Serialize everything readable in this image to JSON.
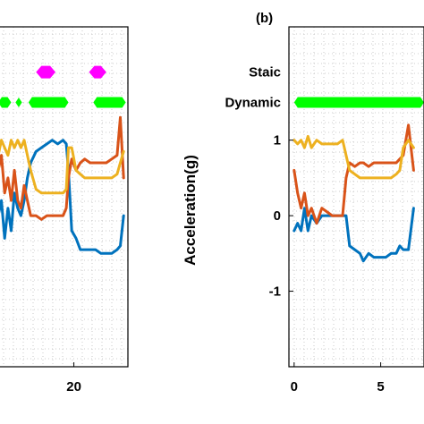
{
  "colors": {
    "x_axis": "#0072BD",
    "y_axis": "#D95319",
    "z_axis": "#EDB120",
    "static_marker": "#FF00FF",
    "dynamic_marker": "#00FF00",
    "grid": "#bdbdbd"
  },
  "chart_data": [
    {
      "type": "line",
      "panel_label": "",
      "xlim": [
        13,
        25
      ],
      "ylim": [
        -2,
        2.5
      ],
      "x_ticks": [
        20
      ],
      "x_tick_labels": [
        "20"
      ],
      "grid": true,
      "states": {
        "static": {
          "y": 1.9,
          "segments": [
            [
              16.5,
              18.3
            ],
            [
              21.4,
              23.0
            ]
          ]
        },
        "dynamic": {
          "y": 1.5,
          "segments": [
            [
              13,
              14.2
            ],
            [
              14.6,
              15.2
            ],
            [
              15.8,
              19.5
            ],
            [
              21.8,
              24.8
            ]
          ]
        }
      },
      "series": [
        {
          "color_key": "x_axis",
          "points": [
            [
              13,
              0.0
            ],
            [
              13.3,
              0.2
            ],
            [
              13.6,
              -0.3
            ],
            [
              13.9,
              0.1
            ],
            [
              14.2,
              -0.2
            ],
            [
              14.5,
              0.3
            ],
            [
              14.8,
              0.1
            ],
            [
              15.1,
              0.0
            ],
            [
              15.4,
              0.2
            ],
            [
              15.7,
              0.5
            ],
            [
              16.0,
              0.7
            ],
            [
              16.5,
              0.85
            ],
            [
              17.0,
              0.9
            ],
            [
              17.5,
              0.95
            ],
            [
              18.0,
              1.0
            ],
            [
              18.5,
              0.95
            ],
            [
              19.0,
              1.0
            ],
            [
              19.3,
              0.95
            ],
            [
              19.5,
              0.6
            ],
            [
              19.8,
              -0.2
            ],
            [
              20.2,
              -0.3
            ],
            [
              20.6,
              -0.45
            ],
            [
              21.0,
              -0.45
            ],
            [
              21.5,
              -0.45
            ],
            [
              22.0,
              -0.45
            ],
            [
              22.5,
              -0.5
            ],
            [
              23.0,
              -0.5
            ],
            [
              23.5,
              -0.5
            ],
            [
              24.0,
              -0.45
            ],
            [
              24.3,
              -0.4
            ],
            [
              24.6,
              0.0
            ]
          ]
        },
        {
          "color_key": "y_axis",
          "points": [
            [
              13,
              0.6
            ],
            [
              13.3,
              0.8
            ],
            [
              13.6,
              0.3
            ],
            [
              13.9,
              0.5
            ],
            [
              14.2,
              0.2
            ],
            [
              14.5,
              0.6
            ],
            [
              14.8,
              0.2
            ],
            [
              15.1,
              0.1
            ],
            [
              15.4,
              0.4
            ],
            [
              15.7,
              0.2
            ],
            [
              16.0,
              0.0
            ],
            [
              16.5,
              0.0
            ],
            [
              17.0,
              -0.05
            ],
            [
              17.5,
              0.0
            ],
            [
              18.0,
              0.0
            ],
            [
              18.5,
              0.0
            ],
            [
              19.0,
              0.0
            ],
            [
              19.3,
              0.1
            ],
            [
              19.5,
              0.5
            ],
            [
              19.8,
              0.75
            ],
            [
              20.2,
              0.6
            ],
            [
              20.6,
              0.7
            ],
            [
              21.0,
              0.75
            ],
            [
              21.5,
              0.7
            ],
            [
              22.0,
              0.7
            ],
            [
              22.5,
              0.7
            ],
            [
              23.0,
              0.7
            ],
            [
              23.5,
              0.75
            ],
            [
              24.0,
              0.8
            ],
            [
              24.3,
              1.3
            ],
            [
              24.6,
              0.5
            ]
          ]
        },
        {
          "color_key": "z_axis",
          "points": [
            [
              13,
              0.8
            ],
            [
              13.3,
              1.0
            ],
            [
              13.6,
              0.9
            ],
            [
              13.9,
              0.8
            ],
            [
              14.2,
              1.0
            ],
            [
              14.5,
              0.9
            ],
            [
              14.8,
              1.0
            ],
            [
              15.1,
              0.9
            ],
            [
              15.4,
              1.0
            ],
            [
              15.7,
              0.8
            ],
            [
              16.0,
              0.6
            ],
            [
              16.5,
              0.35
            ],
            [
              17.0,
              0.3
            ],
            [
              17.5,
              0.3
            ],
            [
              18.0,
              0.3
            ],
            [
              18.5,
              0.3
            ],
            [
              19.0,
              0.3
            ],
            [
              19.3,
              0.35
            ],
            [
              19.5,
              0.9
            ],
            [
              19.8,
              0.9
            ],
            [
              20.2,
              0.6
            ],
            [
              20.6,
              0.55
            ],
            [
              21.0,
              0.5
            ],
            [
              21.5,
              0.5
            ],
            [
              22.0,
              0.5
            ],
            [
              22.5,
              0.5
            ],
            [
              23.0,
              0.5
            ],
            [
              23.5,
              0.5
            ],
            [
              24.0,
              0.55
            ],
            [
              24.3,
              0.7
            ],
            [
              24.6,
              0.85
            ]
          ]
        }
      ]
    },
    {
      "type": "line",
      "panel_label": "(b)",
      "ylabel": "Acceleration(g)",
      "xlim": [
        -0.3,
        7.5
      ],
      "ylim": [
        -2,
        2.5
      ],
      "x_ticks": [
        0,
        5
      ],
      "x_tick_labels": [
        "0",
        "5"
      ],
      "y_ticks": [
        1,
        0,
        -1
      ],
      "y_tick_labels": [
        "1",
        "0",
        "-1"
      ],
      "state_labels": {
        "static": "Staic",
        "dynamic": "Dynamic"
      },
      "grid": true,
      "states": {
        "static": {
          "y": 1.9,
          "segments": []
        },
        "dynamic": {
          "y": 1.5,
          "segments": [
            [
              0,
              7.5
            ]
          ]
        }
      },
      "series": [
        {
          "color_key": "x_axis",
          "points": [
            [
              0,
              -0.2
            ],
            [
              0.2,
              -0.1
            ],
            [
              0.4,
              -0.2
            ],
            [
              0.6,
              0.1
            ],
            [
              0.8,
              -0.2
            ],
            [
              1.0,
              0.0
            ],
            [
              1.3,
              -0.1
            ],
            [
              1.6,
              0.0
            ],
            [
              1.9,
              0.0
            ],
            [
              2.2,
              0.0
            ],
            [
              2.5,
              0.0
            ],
            [
              2.8,
              0.0
            ],
            [
              3.0,
              0.0
            ],
            [
              3.2,
              -0.4
            ],
            [
              3.5,
              -0.45
            ],
            [
              3.8,
              -0.5
            ],
            [
              4.0,
              -0.6
            ],
            [
              4.3,
              -0.5
            ],
            [
              4.6,
              -0.55
            ],
            [
              5.0,
              -0.55
            ],
            [
              5.3,
              -0.55
            ],
            [
              5.6,
              -0.5
            ],
            [
              5.9,
              -0.5
            ],
            [
              6.1,
              -0.4
            ],
            [
              6.3,
              -0.45
            ],
            [
              6.6,
              -0.45
            ],
            [
              6.9,
              0.1
            ]
          ]
        },
        {
          "color_key": "y_axis",
          "points": [
            [
              0,
              0.6
            ],
            [
              0.2,
              0.3
            ],
            [
              0.4,
              0.1
            ],
            [
              0.6,
              0.3
            ],
            [
              0.8,
              0.0
            ],
            [
              1.0,
              0.1
            ],
            [
              1.3,
              -0.1
            ],
            [
              1.6,
              0.1
            ],
            [
              1.9,
              0.05
            ],
            [
              2.2,
              0.0
            ],
            [
              2.5,
              0.0
            ],
            [
              2.8,
              0.0
            ],
            [
              3.0,
              0.5
            ],
            [
              3.2,
              0.7
            ],
            [
              3.5,
              0.65
            ],
            [
              3.8,
              0.7
            ],
            [
              4.0,
              0.7
            ],
            [
              4.3,
              0.65
            ],
            [
              4.6,
              0.7
            ],
            [
              5.0,
              0.7
            ],
            [
              5.3,
              0.7
            ],
            [
              5.6,
              0.7
            ],
            [
              5.9,
              0.7
            ],
            [
              6.1,
              0.75
            ],
            [
              6.3,
              0.8
            ],
            [
              6.6,
              1.2
            ],
            [
              6.9,
              0.6
            ]
          ]
        },
        {
          "color_key": "z_axis",
          "points": [
            [
              0,
              1.0
            ],
            [
              0.2,
              0.95
            ],
            [
              0.4,
              1.0
            ],
            [
              0.6,
              0.9
            ],
            [
              0.8,
              1.05
            ],
            [
              1.0,
              0.9
            ],
            [
              1.3,
              1.0
            ],
            [
              1.6,
              0.95
            ],
            [
              1.9,
              0.95
            ],
            [
              2.2,
              0.95
            ],
            [
              2.5,
              0.95
            ],
            [
              2.8,
              1.0
            ],
            [
              3.0,
              0.8
            ],
            [
              3.2,
              0.6
            ],
            [
              3.5,
              0.55
            ],
            [
              3.8,
              0.5
            ],
            [
              4.0,
              0.5
            ],
            [
              4.3,
              0.5
            ],
            [
              4.6,
              0.5
            ],
            [
              5.0,
              0.5
            ],
            [
              5.3,
              0.5
            ],
            [
              5.6,
              0.5
            ],
            [
              5.9,
              0.55
            ],
            [
              6.1,
              0.6
            ],
            [
              6.3,
              0.9
            ],
            [
              6.6,
              1.0
            ],
            [
              6.9,
              0.9
            ]
          ]
        }
      ]
    }
  ]
}
